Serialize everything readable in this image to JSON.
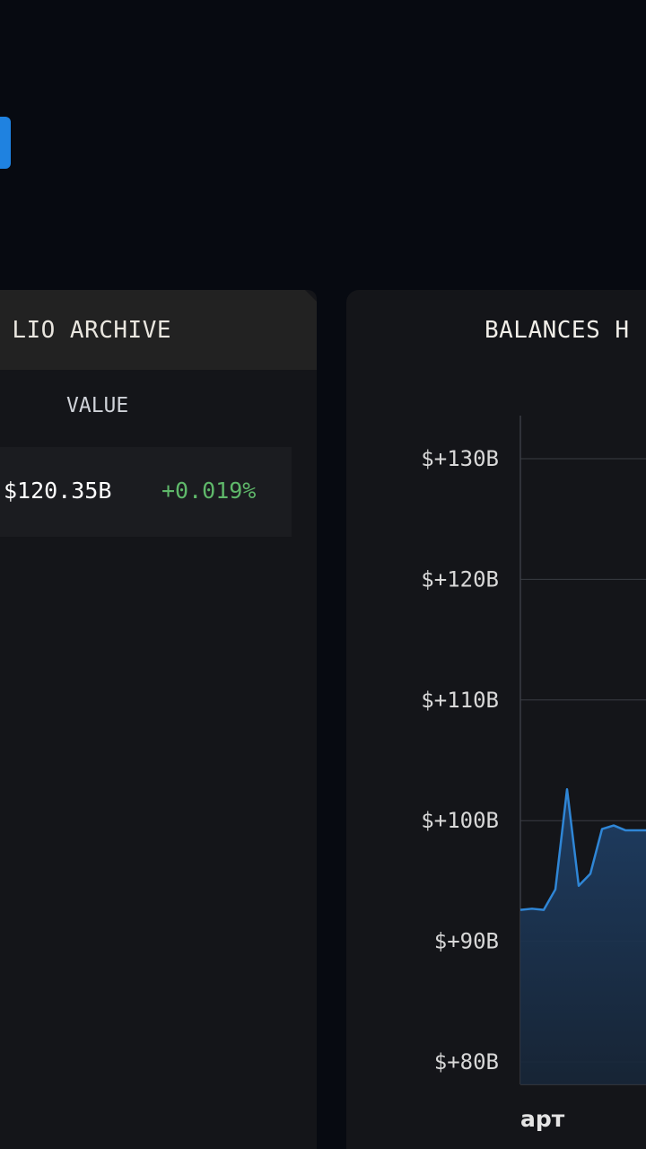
{
  "colors": {
    "background": "#070a11",
    "panel": "#141519",
    "panel_header": "#222222",
    "accent": "#1f82e0",
    "positive": "#5fb86a",
    "series_line": "#2f86d6"
  },
  "archive": {
    "title": "PORTFOLIO ARCHIVE",
    "title_visible": "LIO ARCHIVE",
    "columns": {
      "value": "VALUE"
    },
    "rows": [
      {
        "value": "$120.35B",
        "change": "+0.019%"
      }
    ]
  },
  "balances": {
    "title": "BALANCES H"
  },
  "chart_data": {
    "type": "area",
    "title": "BALANCES H",
    "y_ticks": [
      "$+130B",
      "$+120B",
      "$+110B",
      "$+100B",
      "$+90B",
      "$+80B"
    ],
    "y_tick_values": [
      130,
      120,
      110,
      100,
      90,
      80
    ],
    "ylim": [
      80,
      132.5
    ],
    "x_labels": [
      "арт"
    ],
    "grid": true,
    "series": [
      {
        "values": [
          92.6,
          92.7,
          92.6,
          94.3,
          102.6,
          94.6,
          95.6,
          99.3,
          99.6,
          99.2
        ]
      }
    ]
  }
}
